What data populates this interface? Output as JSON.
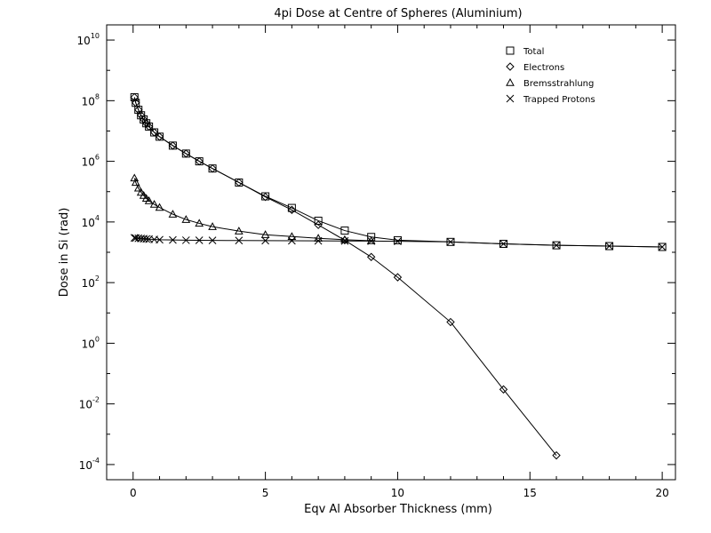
{
  "chart_data": {
    "type": "line",
    "title": "4pi Dose at Centre of Spheres (Aluminium)",
    "xlabel": "Eqv Al Absorber Thickness (mm)",
    "ylabel": "Dose in Si (rad)",
    "xlim": [
      -1,
      20.5
    ],
    "ylim_log10": [
      -4.5,
      10.5
    ],
    "y_scale": "log",
    "x_ticks": [
      0,
      5,
      10,
      15,
      20
    ],
    "y_ticks": [
      {
        "base": "10",
        "exp": "-4",
        "value": 0.0001
      },
      {
        "base": "10",
        "exp": "-2",
        "value": 0.01
      },
      {
        "base": "10",
        "exp": "0",
        "value": 1
      },
      {
        "base": "10",
        "exp": "2",
        "value": 100
      },
      {
        "base": "10",
        "exp": "4",
        "value": 10000
      },
      {
        "base": "10",
        "exp": "6",
        "value": 1000000
      },
      {
        "base": "10",
        "exp": "8",
        "value": 100000000
      },
      {
        "base": "10",
        "exp": "10",
        "value": 10000000000
      }
    ],
    "grid": false,
    "legend_position": "top-right",
    "series": [
      {
        "name": "Total",
        "marker": "square",
        "x": [
          0.05,
          0.1,
          0.2,
          0.3,
          0.4,
          0.5,
          0.6,
          0.8,
          1.0,
          1.5,
          2.0,
          2.5,
          3.0,
          4.0,
          5.0,
          6.0,
          7.0,
          8.0,
          9.0,
          10.0,
          12.0,
          14.0,
          16.0,
          18.0,
          20.0
        ],
        "values": [
          130000000.0,
          85000000.0,
          50000000.0,
          33000000.0,
          24000000.0,
          18000000.0,
          14000000.0,
          9000000.0,
          6500000.0,
          3300000.0,
          1800000.0,
          1000000.0,
          580000.0,
          200000.0,
          70000.0,
          29000.0,
          11000.0,
          5200.0,
          3200.0,
          2500.0,
          2200.0,
          1900.0,
          1700.0,
          1600.0,
          1500.0
        ]
      },
      {
        "name": "Electrons",
        "marker": "diamond",
        "x": [
          0.05,
          0.1,
          0.2,
          0.3,
          0.4,
          0.5,
          0.6,
          0.8,
          1.0,
          1.5,
          2.0,
          2.5,
          3.0,
          4.0,
          5.0,
          6.0,
          7.0,
          8.0,
          9.0,
          10.0,
          12.0,
          14.0,
          16.0
        ],
        "values": [
          130000000.0,
          85000000.0,
          50000000.0,
          33000000.0,
          24000000.0,
          18000000.0,
          14000000.0,
          9000000.0,
          6500000.0,
          3300000.0,
          1800000.0,
          1000000.0,
          580000.0,
          200000.0,
          67000.0,
          25000.0,
          8000.0,
          2500.0,
          700,
          150,
          5.0,
          0.03,
          0.0002
        ]
      },
      {
        "name": "Bremsstrahlung",
        "marker": "triangle",
        "x": [
          0.05,
          0.1,
          0.2,
          0.3,
          0.4,
          0.5,
          0.6,
          0.8,
          1.0,
          1.5,
          2.0,
          2.5,
          3.0,
          4.0,
          5.0,
          6.0,
          7.0,
          8.0,
          9.0
        ],
        "values": [
          280000.0,
          200000.0,
          130000.0,
          95000.0,
          75000.0,
          60000.0,
          50000.0,
          38000.0,
          30000.0,
          18000.0,
          12000.0,
          9000.0,
          7000.0,
          5000.0,
          3800.0,
          3300.0,
          2900.0,
          2600.0,
          2400.0
        ]
      },
      {
        "name": "Trapped Protons",
        "marker": "x",
        "x": [
          0.05,
          0.1,
          0.2,
          0.3,
          0.4,
          0.5,
          0.6,
          0.8,
          1.0,
          1.5,
          2.0,
          2.5,
          3.0,
          4.0,
          5.0,
          6.0,
          7.0,
          8.0,
          9.0,
          10.0,
          12.0,
          14.0,
          16.0,
          18.0,
          20.0
        ],
        "values": [
          3000,
          2950,
          2900,
          2850,
          2800,
          2750,
          2700,
          2650,
          2600,
          2550,
          2500,
          2480,
          2460,
          2440,
          2420,
          2400,
          2380,
          2360,
          2340,
          2300,
          2200,
          1900,
          1700,
          1600,
          1500
        ]
      }
    ]
  }
}
